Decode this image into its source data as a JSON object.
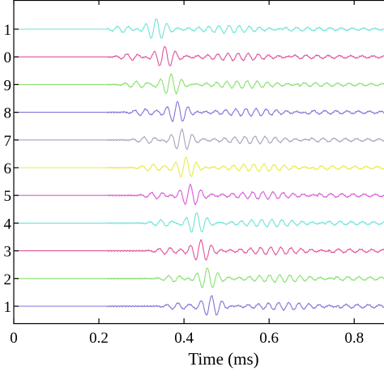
{
  "chart_data": {
    "type": "line",
    "title": "",
    "xlabel": "Time (ms)",
    "ylabel": "",
    "xlim": [
      0,
      0.87
    ],
    "xticks": [
      "0",
      "0.2",
      "0.4",
      "0.6",
      "0.8"
    ],
    "xtick_values": [
      0,
      0.2,
      0.4,
      0.6,
      0.8
    ],
    "trace_labels": [
      "1",
      "0",
      "9",
      "8",
      "7",
      "6",
      "5",
      "4",
      "3",
      "2",
      "1"
    ],
    "grid": false,
    "legend": "none",
    "series": [
      {
        "color": "#6fe3d6",
        "onset_ms": 0.22,
        "peak_ms": 0.335
      },
      {
        "color": "#e0549a",
        "onset_ms": 0.22,
        "peak_ms": 0.355
      },
      {
        "color": "#88e070",
        "onset_ms": 0.22,
        "peak_ms": 0.37
      },
      {
        "color": "#7e76d8",
        "onset_ms": 0.22,
        "peak_ms": 0.385
      },
      {
        "color": "#a4a4c0",
        "onset_ms": 0.22,
        "peak_ms": 0.395
      },
      {
        "color": "#e8ec48",
        "onset_ms": 0.22,
        "peak_ms": 0.405
      },
      {
        "color": "#d85ad8",
        "onset_ms": 0.22,
        "peak_ms": 0.415
      },
      {
        "color": "#6fe3d6",
        "onset_ms": 0.22,
        "peak_ms": 0.43
      },
      {
        "color": "#e0549a",
        "onset_ms": 0.22,
        "peak_ms": 0.44
      },
      {
        "color": "#88e070",
        "onset_ms": 0.22,
        "peak_ms": 0.455
      },
      {
        "color": "#7e76d8",
        "onset_ms": 0.22,
        "peak_ms": 0.465
      }
    ]
  }
}
